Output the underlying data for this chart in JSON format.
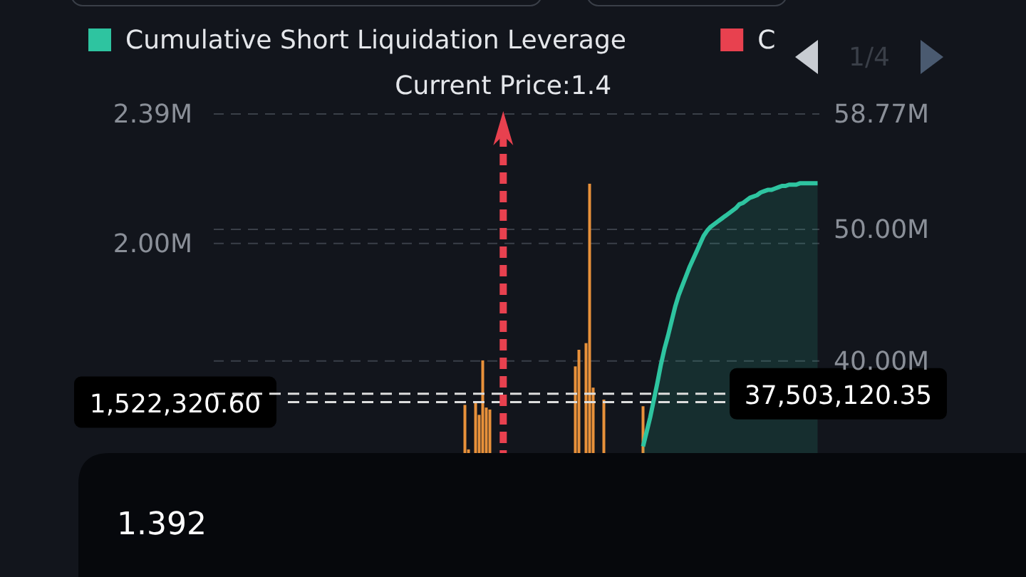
{
  "chart_data": {
    "type": "bar",
    "categories": [
      null,
      null,
      null,
      null,
      null,
      null,
      null,
      null,
      null,
      null,
      null,
      null,
      null,
      null,
      null,
      null,
      null,
      null,
      null,
      null,
      null,
      null,
      null,
      null,
      null,
      null,
      null,
      null,
      null,
      null,
      null,
      null,
      null,
      null,
      null,
      null,
      null,
      null,
      null,
      null,
      null,
      null,
      null,
      null,
      null,
      null,
      null,
      null,
      null,
      null,
      null,
      null,
      null,
      null,
      null,
      null,
      null,
      null,
      null,
      null,
      null,
      null,
      null,
      null,
      null,
      null,
      null,
      null,
      null,
      null,
      null,
      null,
      null,
      null,
      null,
      null,
      null,
      null,
      null,
      null,
      null,
      null,
      null,
      null,
      null,
      null,
      null,
      null,
      null,
      null,
      null,
      null,
      null,
      null,
      null,
      null,
      null,
      null,
      null,
      null,
      null,
      null,
      null,
      null,
      null,
      null,
      null,
      null,
      null,
      null,
      null,
      null,
      null,
      null,
      null,
      null,
      null,
      null,
      null,
      null,
      null,
      null,
      null,
      null,
      null,
      null,
      null,
      null,
      null,
      null,
      null,
      null,
      null,
      null,
      null,
      null,
      null,
      null,
      null,
      null,
      null,
      null,
      null,
      null,
      null,
      null,
      null,
      null,
      null,
      null,
      null,
      null,
      null,
      null,
      null,
      null,
      null,
      null,
      null,
      null,
      null,
      null,
      null,
      null,
      null,
      null,
      null,
      null,
      null,
      null
    ],
    "ylim": [
      1.369,
      2.39
    ],
    "yticks": [
      {
        "value": 2,
        "label": "2.00M"
      },
      {
        "value": 2.39,
        "label": "2.39M"
      }
    ],
    "y2lim": [
      33,
      58.77
    ],
    "y2ticks": [
      {
        "value": 40,
        "label": "40.00M"
      },
      {
        "value": 50,
        "label": "50.00M"
      },
      {
        "value": 58.77,
        "label": "58.77M"
      }
    ],
    "grid": "y",
    "legend": "top",
    "series": [
      {
        "color": "#e8913a",
        "values": [
          null,
          null,
          null,
          null,
          null,
          null,
          null,
          null,
          null,
          null,
          null,
          null,
          null,
          null,
          null,
          null,
          null,
          null,
          null,
          null,
          null,
          null,
          null,
          null,
          null,
          null,
          null,
          null,
          null,
          null,
          null,
          null,
          null,
          null,
          null,
          null,
          null,
          null,
          null,
          null,
          null,
          null,
          null,
          null,
          null,
          null,
          null,
          null,
          null,
          null,
          null,
          null,
          null,
          null,
          null,
          null,
          null,
          null,
          null,
          null,
          null,
          null,
          null,
          null,
          null,
          null,
          null,
          null,
          null,
          null,
          1.514,
          1.38,
          null,
          1.523,
          1.484,
          1.648,
          1.506,
          1.5,
          null,
          null,
          null,
          null,
          null,
          null,
          null,
          null,
          null,
          null,
          null,
          null,
          null,
          null,
          null,
          null,
          null,
          null,
          null,
          null,
          null,
          null,
          null,
          1.63,
          1.68,
          null,
          1.7,
          2.18,
          1.566,
          null,
          null,
          1.53,
          null,
          null,
          null,
          null,
          null,
          null,
          null,
          null,
          null,
          null,
          1.51,
          null,
          null,
          null,
          null,
          null,
          null,
          null,
          null,
          null,
          null,
          null,
          null,
          null,
          null,
          null,
          null,
          null,
          null,
          null,
          null,
          null,
          null,
          null,
          null,
          null,
          null,
          null,
          null,
          null,
          null,
          null,
          null,
          null,
          null,
          null,
          null,
          null,
          null,
          null,
          null,
          null,
          null,
          null,
          null,
          null,
          null,
          null,
          null,
          null
        ]
      },
      {
        "type": "area",
        "name": "Cumulative Short Liquidation Leverage",
        "color": "#2ec4a0",
        "axis": "y2",
        "values": [
          null,
          null,
          null,
          null,
          null,
          null,
          null,
          null,
          null,
          null,
          null,
          null,
          null,
          null,
          null,
          null,
          null,
          null,
          null,
          null,
          null,
          null,
          null,
          null,
          null,
          null,
          null,
          null,
          null,
          null,
          null,
          null,
          null,
          null,
          null,
          null,
          null,
          null,
          null,
          null,
          null,
          null,
          null,
          null,
          null,
          null,
          null,
          null,
          null,
          null,
          null,
          null,
          null,
          null,
          null,
          null,
          null,
          null,
          null,
          null,
          null,
          null,
          null,
          null,
          null,
          null,
          null,
          null,
          null,
          null,
          null,
          null,
          null,
          null,
          null,
          null,
          null,
          null,
          null,
          null,
          null,
          null,
          null,
          null,
          null,
          null,
          null,
          null,
          null,
          null,
          null,
          null,
          null,
          null,
          null,
          null,
          null,
          null,
          null,
          null,
          null,
          null,
          null,
          null,
          null,
          null,
          null,
          null,
          null,
          null,
          null,
          null,
          null,
          null,
          null,
          null,
          null,
          null,
          null,
          null,
          33.5,
          34.6,
          35.7,
          37.0,
          38.3,
          39.7,
          40.9,
          41.9,
          43.0,
          44.1,
          45.0,
          45.7,
          46.4,
          47.1,
          47.7,
          48.3,
          48.9,
          49.5,
          49.9,
          50.2,
          50.4,
          50.6,
          50.8,
          51.0,
          51.2,
          51.4,
          51.6,
          51.9,
          52.0,
          52.2,
          52.4,
          52.5,
          52.6,
          52.8,
          52.9,
          53.0,
          53.0,
          53.1,
          53.2,
          53.3,
          53.3,
          53.4,
          53.4,
          53.4,
          53.5,
          53.5,
          53.5,
          53.5,
          53.5,
          53.5
        ]
      }
    ],
    "ref_lines": [
      {
        "axis": "y",
        "value": 1.5223206,
        "label": "1,522,320.60",
        "color": "#dddddd",
        "line_style": "dashed"
      },
      {
        "axis": "y2",
        "value": 37.50312035,
        "label": "37,503,120.35",
        "color": "#dddddd",
        "line_style": "dashed"
      }
    ],
    "annotations": [
      "Current Price:1.4",
      "1/4",
      "1.392",
      "C"
    ]
  }
}
